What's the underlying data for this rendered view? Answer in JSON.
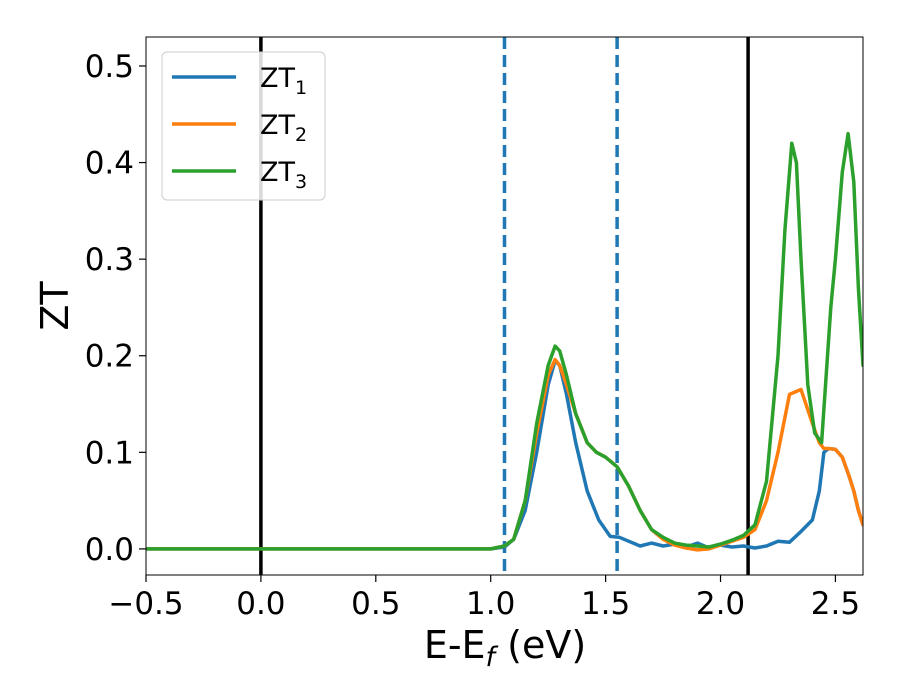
{
  "chart_data": {
    "type": "line",
    "xlabel": "E-E",
    "xlabel_sub": "f",
    "xlabel_unit": " (eV)",
    "ylabel": "ZT",
    "xlim": [
      -0.5,
      2.62
    ],
    "ylim": [
      -0.027,
      0.53
    ],
    "xticks": [
      -0.5,
      0.0,
      0.5,
      1.0,
      1.5,
      2.0,
      2.5
    ],
    "xtick_labels": [
      "−0.5",
      "0.0",
      "0.5",
      "1.0",
      "1.5",
      "2.0",
      "2.5"
    ],
    "yticks": [
      0.0,
      0.1,
      0.2,
      0.3,
      0.4,
      0.5
    ],
    "ytick_labels": [
      "0.0",
      "0.1",
      "0.2",
      "0.3",
      "0.4",
      "0.5"
    ],
    "grid": false,
    "legend_position": "top-left",
    "vlines": [
      {
        "x": 0.0,
        "style": "solid",
        "color": "#000000"
      },
      {
        "x": 1.06,
        "style": "dashed",
        "color": "#1f77b4"
      },
      {
        "x": 1.55,
        "style": "dashed",
        "color": "#1f77b4"
      },
      {
        "x": 2.12,
        "style": "solid",
        "color": "#000000"
      }
    ],
    "series": [
      {
        "name": "ZT",
        "sub": "1",
        "color": "#1f77b4",
        "x": [
          -0.5,
          0.0,
          0.5,
          1.0,
          1.06,
          1.1,
          1.15,
          1.2,
          1.25,
          1.28,
          1.3,
          1.33,
          1.37,
          1.42,
          1.47,
          1.52,
          1.56,
          1.6,
          1.65,
          1.7,
          1.75,
          1.8,
          1.85,
          1.9,
          1.95,
          2.0,
          2.05,
          2.1,
          2.15,
          2.2,
          2.25,
          2.3,
          2.35,
          2.4,
          2.43,
          2.45,
          2.47,
          2.5,
          2.53,
          2.56,
          2.58,
          2.6,
          2.62
        ],
        "y": [
          0.0,
          0.0,
          0.0,
          0.0,
          0.002,
          0.01,
          0.04,
          0.1,
          0.17,
          0.195,
          0.19,
          0.16,
          0.11,
          0.06,
          0.03,
          0.013,
          0.012,
          0.008,
          0.003,
          0.006,
          0.003,
          0.005,
          0.002,
          0.006,
          0.001,
          0.004,
          0.002,
          0.003,
          0.001,
          0.003,
          0.008,
          0.007,
          0.018,
          0.03,
          0.06,
          0.1,
          0.104,
          0.103,
          0.095,
          0.075,
          0.06,
          0.04,
          0.025
        ]
      },
      {
        "name": "ZT",
        "sub": "2",
        "color": "#ff7f0e",
        "x": [
          -0.5,
          0.0,
          0.5,
          1.0,
          1.06,
          1.1,
          1.15,
          1.2,
          1.25,
          1.28,
          1.3,
          1.33,
          1.37,
          1.42,
          1.46,
          1.5,
          1.55,
          1.6,
          1.65,
          1.7,
          1.75,
          1.8,
          1.85,
          1.9,
          1.95,
          2.0,
          2.05,
          2.1,
          2.15,
          2.2,
          2.25,
          2.3,
          2.35,
          2.4,
          2.43,
          2.45,
          2.47,
          2.5,
          2.53,
          2.56,
          2.58,
          2.6,
          2.62
        ],
        "y": [
          0.0,
          0.0,
          0.0,
          0.0,
          0.003,
          0.01,
          0.05,
          0.12,
          0.18,
          0.196,
          0.19,
          0.17,
          0.14,
          0.11,
          0.1,
          0.095,
          0.085,
          0.065,
          0.04,
          0.02,
          0.01,
          0.004,
          0.001,
          -0.001,
          0.0,
          0.004,
          0.008,
          0.012,
          0.02,
          0.05,
          0.1,
          0.16,
          0.165,
          0.13,
          0.11,
          0.104,
          0.104,
          0.103,
          0.095,
          0.075,
          0.06,
          0.04,
          0.025
        ]
      },
      {
        "name": "ZT",
        "sub": "3",
        "color": "#2ca02c",
        "x": [
          -0.5,
          0.0,
          0.5,
          1.0,
          1.06,
          1.1,
          1.15,
          1.2,
          1.25,
          1.28,
          1.3,
          1.33,
          1.37,
          1.42,
          1.46,
          1.5,
          1.55,
          1.6,
          1.65,
          1.7,
          1.75,
          1.8,
          1.85,
          1.9,
          1.95,
          2.0,
          2.05,
          2.1,
          2.15,
          2.2,
          2.25,
          2.28,
          2.31,
          2.33,
          2.35,
          2.38,
          2.41,
          2.44,
          2.46,
          2.48,
          2.5,
          2.53,
          2.555,
          2.58,
          2.6,
          2.62
        ],
        "y": [
          0.0,
          0.0,
          0.0,
          0.0,
          0.003,
          0.01,
          0.05,
          0.13,
          0.19,
          0.21,
          0.205,
          0.18,
          0.14,
          0.11,
          0.1,
          0.095,
          0.085,
          0.065,
          0.04,
          0.02,
          0.012,
          0.006,
          0.004,
          0.003,
          0.002,
          0.005,
          0.009,
          0.014,
          0.025,
          0.07,
          0.2,
          0.33,
          0.42,
          0.4,
          0.3,
          0.17,
          0.12,
          0.11,
          0.18,
          0.25,
          0.3,
          0.39,
          0.43,
          0.38,
          0.27,
          0.19
        ]
      }
    ]
  }
}
